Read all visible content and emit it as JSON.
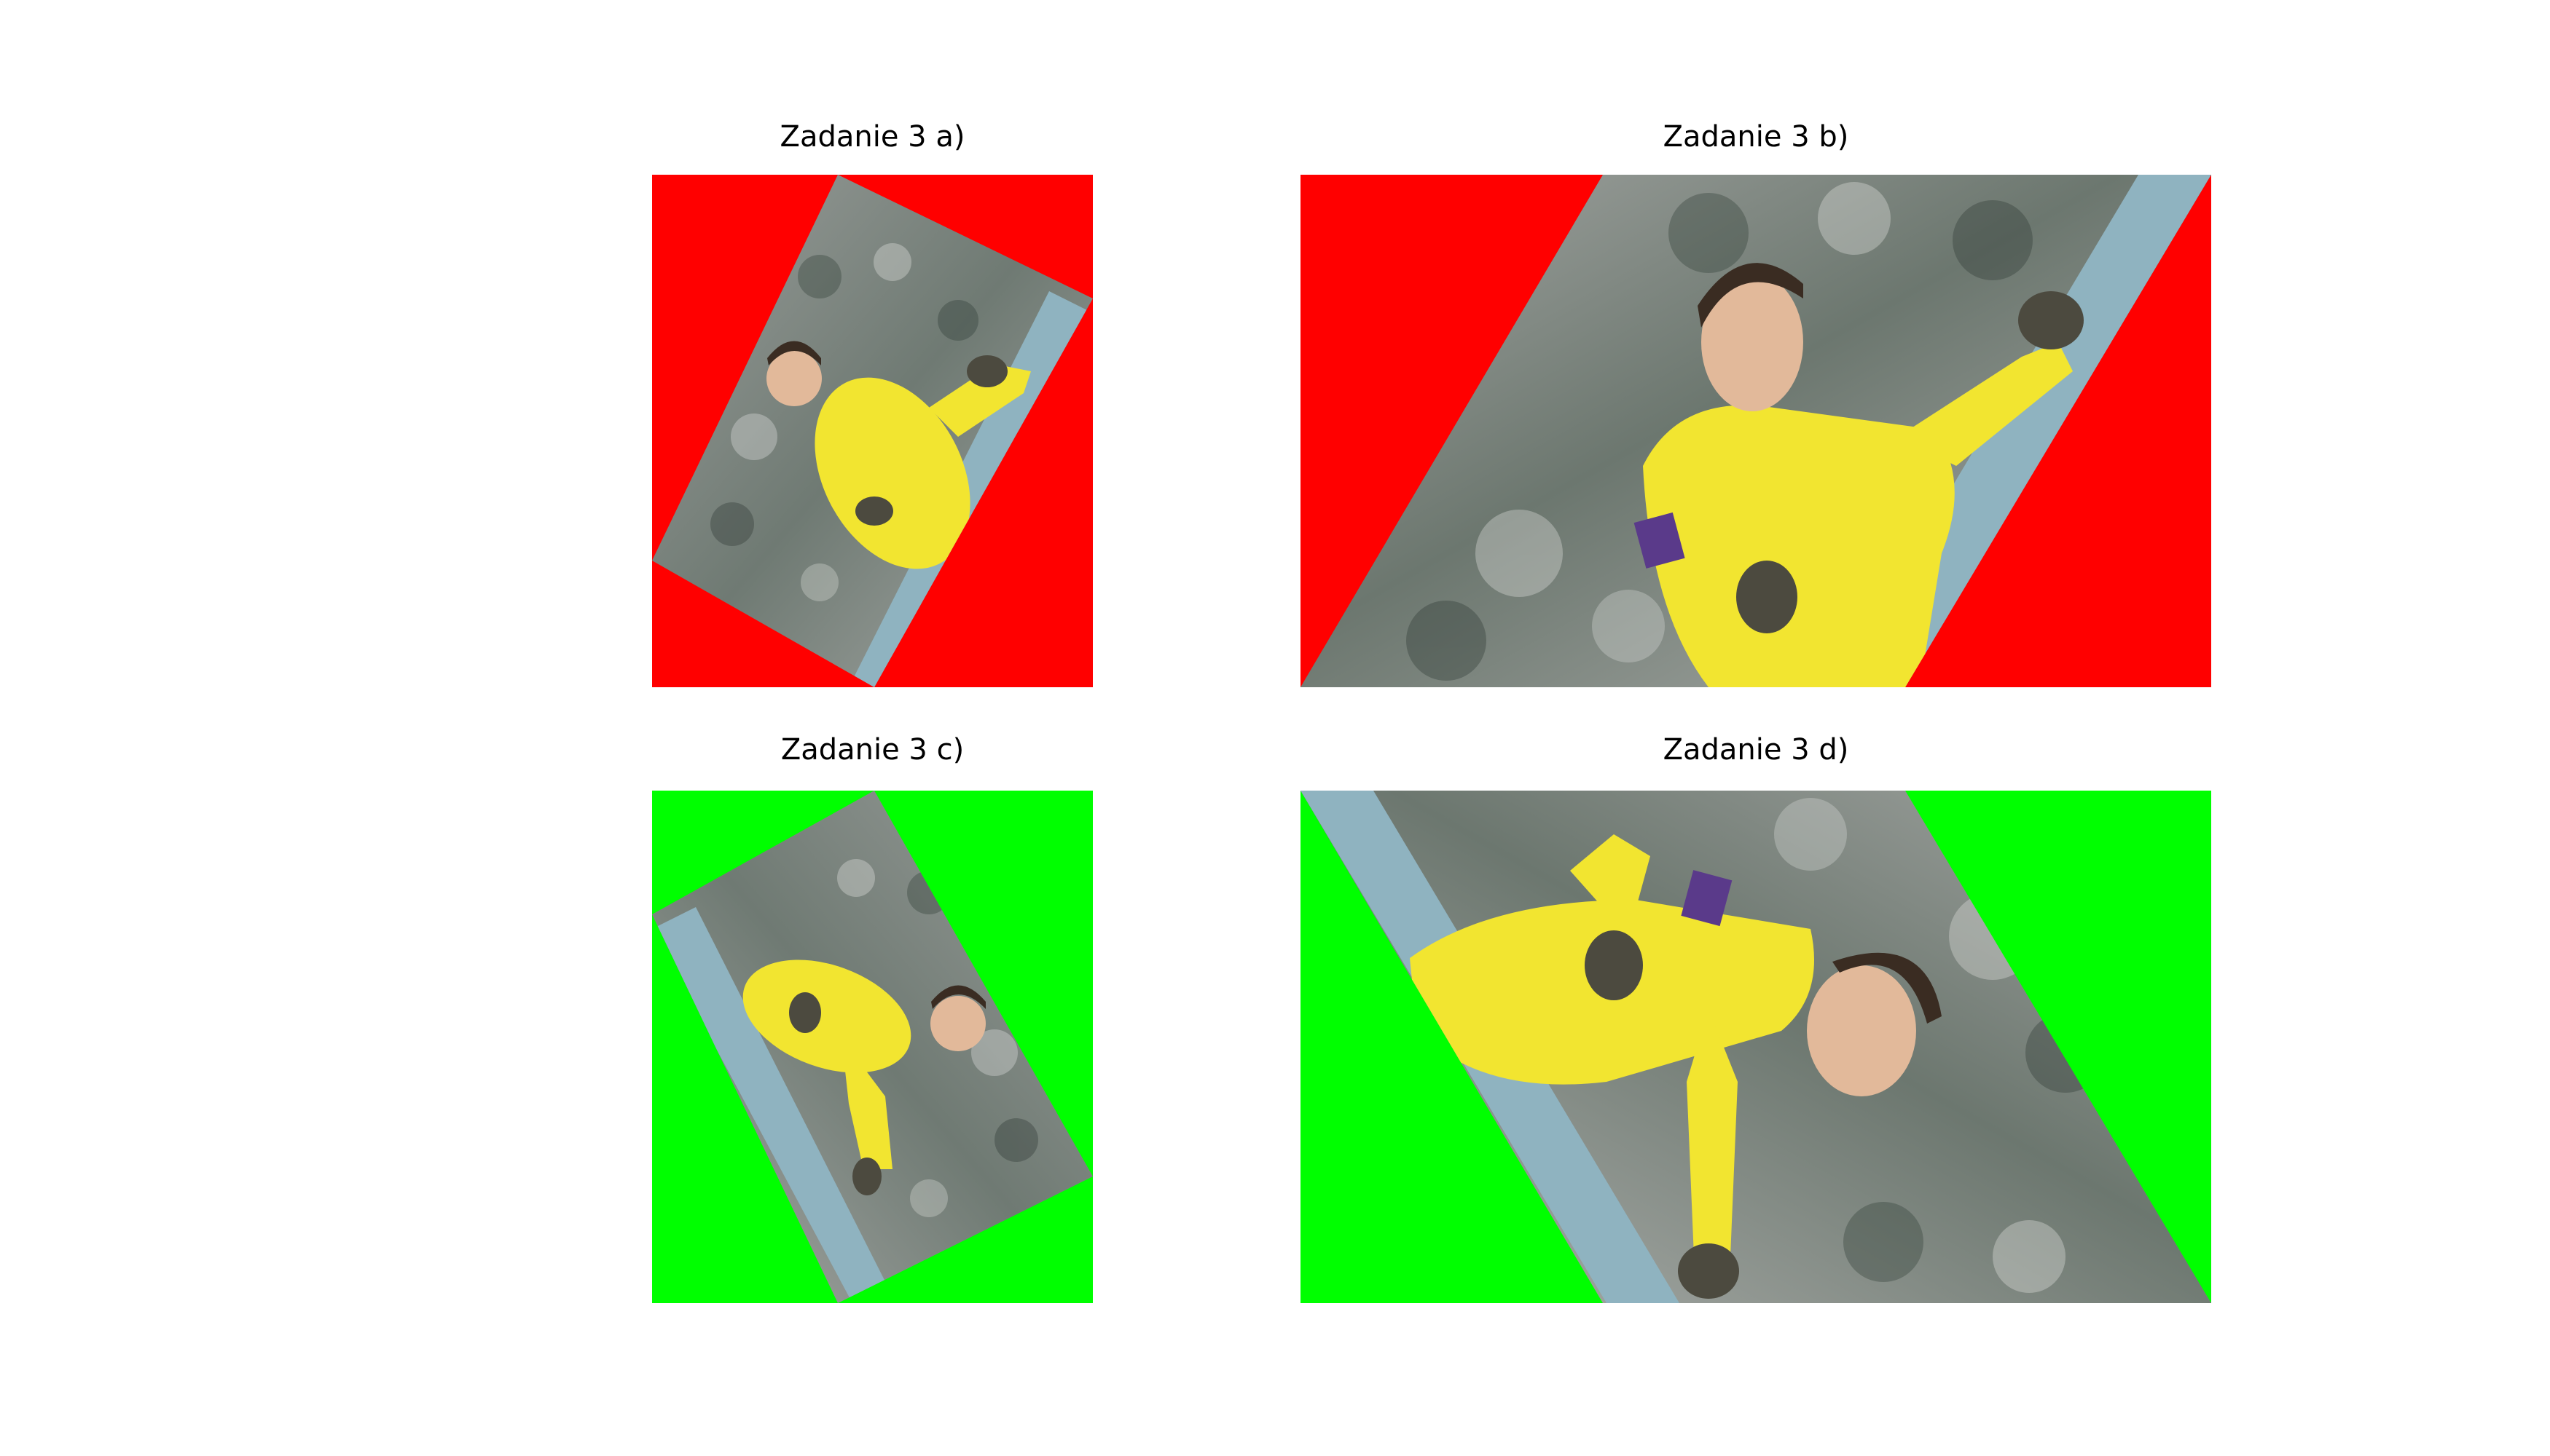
{
  "figure": {
    "panels": [
      {
        "id": "a",
        "title": "Zadanie 3 a)",
        "fill_color": "#ff0000"
      },
      {
        "id": "b",
        "title": "Zadanie 3 b)",
        "fill_color": "#ff0000"
      },
      {
        "id": "c",
        "title": "Zadanie 3 c)",
        "fill_color": "#00ff00"
      },
      {
        "id": "d",
        "title": "Zadanie 3 d)",
        "fill_color": "#00ff00"
      }
    ],
    "photo": {
      "subject": "goalkeeper in yellow kit celebrating",
      "jersey_color": "#f2e530",
      "crowd_color": "#8a8f8c",
      "stripe_color": "#8fb3c0"
    }
  }
}
